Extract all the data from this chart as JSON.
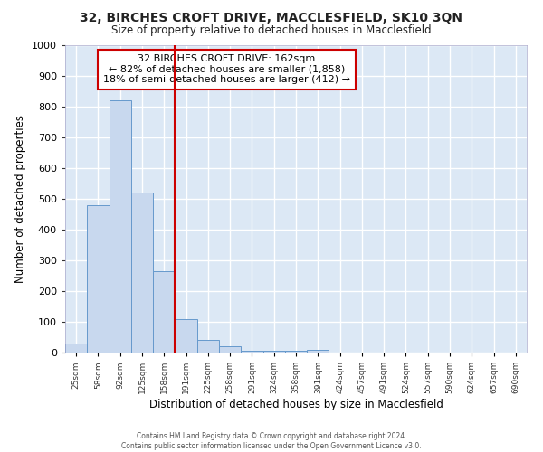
{
  "title": "32, BIRCHES CROFT DRIVE, MACCLESFIELD, SK10 3QN",
  "subtitle": "Size of property relative to detached houses in Macclesfield",
  "xlabel": "Distribution of detached houses by size in Macclesfield",
  "ylabel": "Number of detached properties",
  "bin_labels": [
    "25sqm",
    "58sqm",
    "92sqm",
    "125sqm",
    "158sqm",
    "191sqm",
    "225sqm",
    "258sqm",
    "291sqm",
    "324sqm",
    "358sqm",
    "391sqm",
    "424sqm",
    "457sqm",
    "491sqm",
    "524sqm",
    "557sqm",
    "590sqm",
    "624sqm",
    "657sqm",
    "690sqm"
  ],
  "bar_values": [
    30,
    480,
    820,
    520,
    265,
    110,
    40,
    20,
    5,
    5,
    5,
    10,
    0,
    0,
    0,
    0,
    0,
    0,
    0,
    0,
    0
  ],
  "bar_color": "#c8d8ee",
  "bar_edge_color": "#6699cc",
  "property_line_x": 4.5,
  "property_line_color": "#cc0000",
  "annotation_text": "32 BIRCHES CROFT DRIVE: 162sqm\n← 82% of detached houses are smaller (1,858)\n18% of semi-detached houses are larger (412) →",
  "annotation_box_color": "#cc0000",
  "ylim": [
    0,
    1000
  ],
  "yticks": [
    0,
    100,
    200,
    300,
    400,
    500,
    600,
    700,
    800,
    900,
    1000
  ],
  "background_color": "#dce8f5",
  "fig_background_color": "#ffffff",
  "grid_color": "#ffffff",
  "footer_lines": [
    "Contains HM Land Registry data © Crown copyright and database right 2024.",
    "Contains public sector information licensed under the Open Government Licence v3.0."
  ]
}
